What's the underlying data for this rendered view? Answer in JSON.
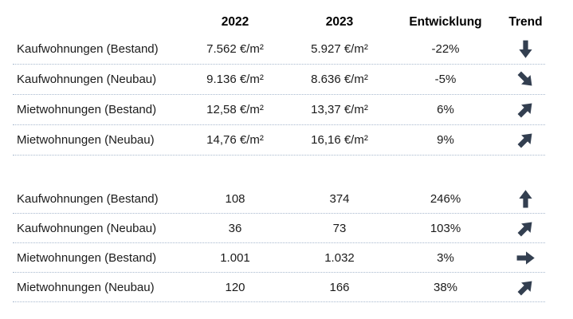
{
  "colors": {
    "arrow": "#333F50",
    "separator": "#a8b9ce",
    "header_text": "#000000",
    "body_text": "#1b1b1b",
    "background": "#ffffff"
  },
  "table": {
    "columns": {
      "label": "",
      "col_2022": "2022",
      "col_2023": "2023",
      "col_entwicklung": "Entwicklung",
      "col_trend": "Trend"
    },
    "sections": [
      {
        "name": "prices-per-sqm",
        "rows": [
          {
            "label": "Kaufwohnungen (Bestand)",
            "v2022": "7.562 €/m²",
            "v2023": "5.927 €/m²",
            "entwicklung": "-22%",
            "trend": "down"
          },
          {
            "label": "Kaufwohnungen (Neubau)",
            "v2022": "9.136 €/m²",
            "v2023": "8.636 €/m²",
            "entwicklung": "-5%",
            "trend": "down-right"
          },
          {
            "label": "Mietwohnungen (Bestand)",
            "v2022": "12,58 €/m²",
            "v2023": "13,37 €/m²",
            "entwicklung": "6%",
            "trend": "up-right"
          },
          {
            "label": "Mietwohnungen (Neubau)",
            "v2022": "14,76 €/m²",
            "v2023": "16,16 €/m²",
            "entwicklung": "9%",
            "trend": "up-right"
          }
        ]
      },
      {
        "name": "listing-counts",
        "rows": [
          {
            "label": "Kaufwohnungen (Bestand)",
            "v2022": "108",
            "v2023": "374",
            "entwicklung": "246%",
            "trend": "up"
          },
          {
            "label": "Kaufwohnungen (Neubau)",
            "v2022": "36",
            "v2023": "73",
            "entwicklung": "103%",
            "trend": "up-right"
          },
          {
            "label": "Mietwohnungen (Bestand)",
            "v2022": "1.001",
            "v2023": "1.032",
            "entwicklung": "3%",
            "trend": "right"
          },
          {
            "label": "Mietwohnungen (Neubau)",
            "v2022": "120",
            "v2023": "166",
            "entwicklung": "38%",
            "trend": "up-right"
          }
        ]
      }
    ]
  }
}
